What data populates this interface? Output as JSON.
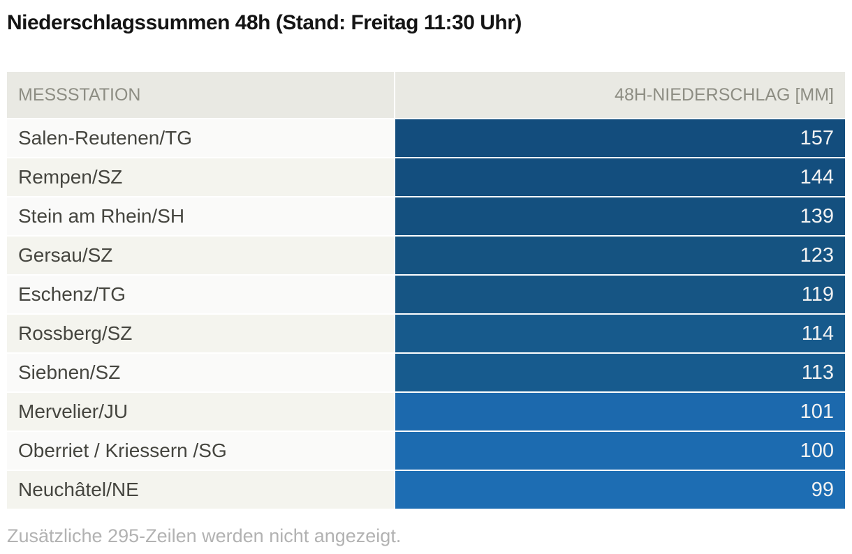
{
  "title": "Niederschlagssummen 48h (Stand: Freitag 11:30 Uhr)",
  "table": {
    "columns": {
      "station": "MESSSTATION",
      "value": "48H-NIEDERSCHLAG [MM]"
    },
    "rows": [
      {
        "station": "Salen-Reutenen/TG",
        "value": "157",
        "color": "#134d7d"
      },
      {
        "station": "Rempen/SZ",
        "value": "144",
        "color": "#134e7e"
      },
      {
        "station": "Stein am Rhein/SH",
        "value": "139",
        "color": "#14507f"
      },
      {
        "station": "Gersau/SZ",
        "value": "123",
        "color": "#155381"
      },
      {
        "station": "Eschenz/TG",
        "value": "119",
        "color": "#165584"
      },
      {
        "station": "Rossberg/SZ",
        "value": "114",
        "color": "#175a8c"
      },
      {
        "station": "Siebnen/SZ",
        "value": "113",
        "color": "#175b8e"
      },
      {
        "station": "Mervelier/JU",
        "value": "101",
        "color": "#1c69ad"
      },
      {
        "station": "Oberriet / Kriessern /SG",
        "value": "100",
        "color": "#1c6bb0"
      },
      {
        "station": "Neuchâtel/NE",
        "value": "99",
        "color": "#1d6db3"
      }
    ]
  },
  "footnote": "Zusätzliche 295-Zeilen werden nicht angezeigt.",
  "colors": {
    "header_bg": "#e9e9e3",
    "row_bg_odd": "#fafaf9",
    "row_bg_even": "#f4f4ee",
    "bar_dark": "#134d7d",
    "bar_light": "#1d6db3",
    "bar_text": "#f2f2f2"
  },
  "chart_data": {
    "type": "bar",
    "title": "Niederschlagssummen 48h (Stand: Freitag 11:30 Uhr)",
    "categories": [
      "Salen-Reutenen/TG",
      "Rempen/SZ",
      "Stein am Rhein/SH",
      "Gersau/SZ",
      "Eschenz/TG",
      "Rossberg/SZ",
      "Siebnen/SZ",
      "Mervelier/JU",
      "Oberriet / Kriessern /SG",
      "Neuchâtel/NE"
    ],
    "values": [
      157,
      144,
      139,
      123,
      119,
      114,
      113,
      101,
      100,
      99
    ],
    "xlabel": "MESSSTATION",
    "ylabel": "48H-NIEDERSCHLAG [MM]",
    "unit": "mm",
    "orientation": "horizontal",
    "legend": false,
    "grid": false,
    "annotation": "Zusätzliche 295-Zeilen werden nicht angezeigt."
  }
}
